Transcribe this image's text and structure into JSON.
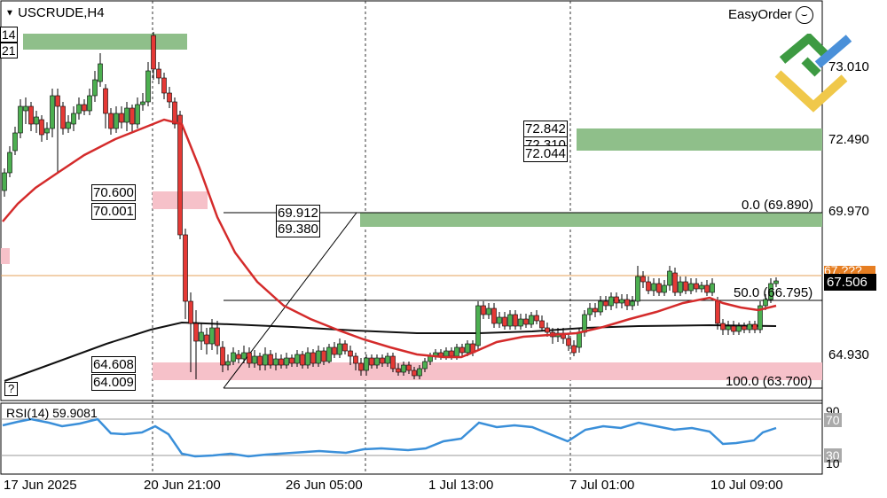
{
  "window": {
    "symbol_title": "USCRUDE,H4",
    "easyorder_label": "EasyOrder",
    "smiley_icon": "smiley-icon",
    "question_label": "?"
  },
  "price_axis": {
    "labels": [
      "73.010",
      "72.490",
      "69.970",
      "64.930"
    ],
    "current_price": "67.506",
    "hidden_price": "67.???",
    "current_price_color": "#000000",
    "hidden_price_color": "#e67e22"
  },
  "time_axis": {
    "labels": [
      "17 Jun 2025",
      "20 Jun 21:00",
      "26 Jun 05:00",
      "1 Jul 13:00",
      "7 Jul 01:00",
      "10 Jul 09:00"
    ]
  },
  "annotations": {
    "box_70600": "70.600",
    "box_70001": "70.001",
    "box_69912": "69.912",
    "box_69380": "69.380",
    "box_72842": "72.842",
    "box_72310": "72.310",
    "box_72044": "72.044",
    "box_64608": "64.608",
    "box_64009": "64.009",
    "left_top_1": "14",
    "left_top_2": "21"
  },
  "fibonacci": {
    "level_0": "0.0 (69.890)",
    "level_50": "50.0 (66.795)",
    "level_100": "100.0 (63.700)"
  },
  "rsi": {
    "label": "RSI(14) 59.9081",
    "level_90": "90",
    "level_70": "70",
    "level_30": "30",
    "level_10": "10",
    "line_color": "#3a8fd9"
  },
  "colors": {
    "supply_zone": "#8fbf8a",
    "demand_zone": "#f6c1c9",
    "ma_line": "#d42b2b",
    "long_ma": "#111111",
    "bull_candle": "#4caf50",
    "bear_candle": "#e53935"
  }
}
